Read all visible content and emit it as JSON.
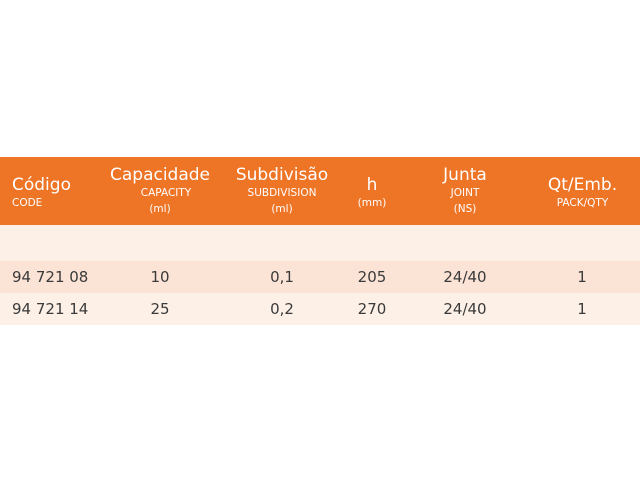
{
  "table": {
    "columns": [
      {
        "main": "Código",
        "sub1": "CODE",
        "sub2": ""
      },
      {
        "main": "Capacidade",
        "sub1": "CAPACITY",
        "sub2": "(ml)"
      },
      {
        "main": "Subdivisão",
        "sub1": "SUBDIVISION",
        "sub2": "(ml)"
      },
      {
        "main": "h",
        "sub1": "(mm)",
        "sub2": ""
      },
      {
        "main": "Junta",
        "sub1": "JOINT",
        "sub2": "(NS)"
      },
      {
        "main": "Qt/Emb.",
        "sub1": "PACK/QTY",
        "sub2": ""
      }
    ],
    "rows": [
      [
        "94 721 08",
        "10",
        "0,1",
        "205",
        "24/40",
        "1"
      ],
      [
        "94 721 14",
        "25",
        "0,2",
        "270",
        "24/40",
        "1"
      ]
    ]
  },
  "colors": {
    "header_bg": "#ee7426",
    "row_light": "#fdf0e7",
    "row_medium": "#fbe4d6"
  }
}
